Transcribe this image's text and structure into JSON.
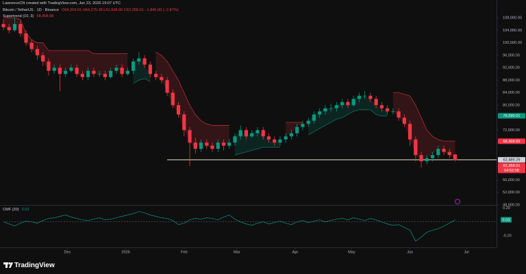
{
  "chart_data": {
    "type": "candlestick",
    "watermark": "LawrenceCN created with TradingView.com, Jun 23, 2026 19:07 UTC",
    "symbol": "Bitcoin / TetherUS · 1D · Binance",
    "ohlc_text": "O64,203.01 H64,275.38 L61,938.00 C62,358.01 −1,845.00 (−2.87%)",
    "brand": "TradingView",
    "up_color": "#089981",
    "down_color": "#f23645",
    "x": [
      0,
      3,
      6,
      9,
      12,
      15,
      18,
      21,
      24,
      27,
      30,
      33,
      36,
      39,
      42,
      45,
      48,
      51,
      54,
      57,
      60,
      63,
      66,
      69,
      72,
      75,
      78,
      81,
      84,
      87,
      90,
      93,
      96,
      99,
      102,
      105,
      108,
      111,
      114,
      117,
      120,
      123,
      126,
      129,
      132,
      135,
      138,
      141,
      144,
      147,
      150,
      153,
      156,
      159,
      162,
      165,
      168,
      171,
      174,
      177,
      180,
      183,
      186,
      189,
      192,
      195,
      198,
      201,
      204,
      207,
      210,
      213,
      216,
      219,
      222,
      225,
      228,
      231,
      234,
      237,
      240
    ],
    "open": [
      106000,
      105000,
      104000,
      106000,
      103000,
      100000,
      98000,
      96000,
      94000,
      91000,
      92000,
      90000,
      91000,
      92000,
      90000,
      89000,
      91000,
      90000,
      90000,
      89000,
      91000,
      92000,
      90000,
      91000,
      94000,
      95000,
      93000,
      90000,
      89000,
      88000,
      84000,
      80000,
      77000,
      72000,
      68000,
      66000,
      68000,
      67000,
      66000,
      68000,
      67000,
      68000,
      70000,
      72000,
      70000,
      71000,
      72000,
      70000,
      69000,
      68000,
      69000,
      70000,
      71000,
      73000,
      74000,
      75000,
      77000,
      78000,
      79000,
      79000,
      80000,
      81000,
      80000,
      82000,
      83000,
      83000,
      82000,
      80000,
      79000,
      78000,
      78000,
      76000,
      74000,
      69000,
      64000,
      62000,
      63000,
      64000,
      66000,
      65000,
      64203.01
    ],
    "high": [
      107500,
      106000,
      108000,
      107000,
      104000,
      101000,
      99000,
      97000,
      95000,
      93000,
      93000,
      92000,
      93000,
      93000,
      91000,
      92000,
      92000,
      91000,
      91000,
      92000,
      93000,
      93000,
      92000,
      95000,
      97000,
      96000,
      94000,
      91000,
      90000,
      89000,
      85000,
      81000,
      78000,
      73000,
      69500,
      69000,
      69000,
      68000,
      69000,
      69000,
      69000,
      71000,
      73500,
      73000,
      72000,
      73000,
      73000,
      71000,
      70000,
      70000,
      71000,
      72000,
      74000,
      75000,
      76000,
      78000,
      79000,
      80000,
      80500,
      81000,
      82000,
      82000,
      83000,
      84000,
      84500,
      84000,
      83000,
      81000,
      80000,
      79000,
      79000,
      77000,
      75000,
      70000,
      65000,
      64000,
      65000,
      67000,
      67000,
      66000,
      64275.38
    ],
    "low": [
      104000,
      103000,
      103500,
      102000,
      99000,
      97000,
      94500,
      92500,
      89500,
      90000,
      84500,
      89000,
      90500,
      89000,
      88000,
      88000,
      89000,
      89000,
      88000,
      88500,
      90000,
      89000,
      89500,
      90000,
      93000,
      92000,
      89000,
      88000,
      87000,
      83000,
      79000,
      76000,
      70000,
      60500,
      64500,
      65000,
      66000,
      65000,
      65000,
      65500,
      66000,
      67000,
      69000,
      69000,
      69500,
      70000,
      69000,
      68000,
      67000,
      67000,
      68000,
      69000,
      70000,
      72000,
      73000,
      74000,
      76000,
      77000,
      78000,
      78000,
      79000,
      79000,
      79500,
      81000,
      82000,
      81000,
      79000,
      78000,
      77000,
      77000,
      75000,
      73000,
      67000,
      62000,
      60000,
      61000,
      62000,
      63000,
      64000,
      63000,
      61938
    ],
    "close": [
      105000,
      104000,
      106000,
      103000,
      100000,
      98000,
      96000,
      94000,
      91000,
      92000,
      90000,
      91000,
      92000,
      90000,
      89000,
      91000,
      90000,
      90000,
      89000,
      91000,
      92000,
      90000,
      91000,
      94000,
      95000,
      93000,
      90000,
      89000,
      88000,
      84000,
      80000,
      77000,
      72000,
      68000,
      66000,
      68000,
      67000,
      66000,
      68000,
      67000,
      68000,
      70000,
      72000,
      70000,
      71000,
      72000,
      70000,
      69000,
      68000,
      69000,
      70000,
      71000,
      73000,
      74000,
      75000,
      77000,
      78000,
      79000,
      79000,
      80000,
      81000,
      80000,
      82000,
      83000,
      83000,
      82000,
      80000,
      79000,
      78000,
      78000,
      76000,
      74000,
      69000,
      64000,
      62000,
      63000,
      64000,
      66000,
      65000,
      64000,
      62358.01
    ],
    "xlim": [
      0,
      262
    ],
    "xticks": [
      {
        "value": 34,
        "label": "Dec"
      },
      {
        "value": 65,
        "label": "2026"
      },
      {
        "value": 96,
        "label": "Feb"
      },
      {
        "value": 124,
        "label": "Mar"
      },
      {
        "value": 155,
        "label": "Apr"
      },
      {
        "value": 185,
        "label": "May"
      },
      {
        "value": 216,
        "label": "Jun"
      },
      {
        "value": 246,
        "label": "Jul"
      }
    ],
    "ylim": [
      48000,
      113700
    ],
    "yticks": [
      {
        "value": 108000,
        "label": "108,000.00"
      },
      {
        "value": 104000,
        "label": "104,000.00"
      },
      {
        "value": 100000,
        "label": "100,000.00"
      },
      {
        "value": 96000,
        "label": "96,000.00"
      },
      {
        "value": 92000,
        "label": "92,000.00"
      },
      {
        "value": 88000,
        "label": "88,000.00"
      },
      {
        "value": 84000,
        "label": "84,000.00"
      },
      {
        "value": 80000,
        "label": "80,000.00"
      },
      {
        "value": 72000,
        "label": "72,000.00"
      },
      {
        "value": 56000,
        "label": "56,000.00"
      },
      {
        "value": 52000,
        "label": "52,000.00"
      },
      {
        "value": 48000,
        "label": "48,000.00"
      }
    ],
    "price_labels": [
      {
        "value": 76590.01,
        "label": "76,590.01",
        "color": "#089981"
      },
      {
        "value": 68458.68,
        "label": "68,458.68",
        "color": "#f23645"
      },
      {
        "value": 62489.29,
        "label": "62,489.29",
        "color": "#d1d4dc"
      },
      {
        "value": 62358.01,
        "label": "62,358.01",
        "color": "#f23645",
        "sub": "04:52:08"
      }
    ],
    "horizontal_line": {
      "value": 62489.29,
      "start": 87,
      "color": "#efe6c8"
    },
    "supertrend": {
      "name": "Supertrend (10, 3)",
      "value_label": "68,458.68",
      "up_color": "#089981",
      "down_color": "#f23645",
      "upper": [
        108000,
        108000,
        108000,
        107500,
        103000,
        101000,
        100000,
        100000,
        97500,
        97500,
        97500,
        97500,
        97500,
        97500,
        97500,
        97500,
        96500,
        96500,
        96500,
        96500,
        96500,
        96500,
        96500,
        null,
        null,
        null,
        null,
        97000,
        96000,
        94000,
        91000,
        88000,
        84000,
        80000,
        77000,
        75000,
        74000,
        73500,
        73500,
        73500,
        73500,
        null,
        null,
        null,
        null,
        null,
        null,
        null,
        null,
        null,
        74500,
        74500,
        74500,
        74500,
        null,
        null,
        null,
        null,
        null,
        null,
        null,
        null,
        null,
        null,
        null,
        null,
        null,
        null,
        null,
        84000,
        84000,
        83500,
        83000,
        80000,
        76000,
        72000,
        70000,
        69000,
        68500,
        68500,
        68458.68
      ],
      "lower": [
        null,
        null,
        null,
        null,
        null,
        null,
        null,
        null,
        null,
        null,
        null,
        null,
        null,
        null,
        null,
        null,
        null,
        null,
        null,
        null,
        null,
        null,
        null,
        87000,
        88000,
        88500,
        87500,
        null,
        null,
        null,
        null,
        null,
        null,
        null,
        null,
        null,
        null,
        null,
        null,
        null,
        null,
        64000,
        64500,
        65000,
        65500,
        66000,
        66500,
        66500,
        66500,
        66500,
        null,
        null,
        null,
        null,
        70500,
        71500,
        72500,
        73500,
        74500,
        75500,
        76000,
        77000,
        78000,
        78500,
        78500,
        78500,
        77000,
        76500,
        76500,
        null,
        null,
        null,
        null,
        null,
        null,
        null,
        null,
        null,
        null,
        null,
        null
      ]
    },
    "cmf": {
      "name": "CMF (20)",
      "value_label": "0.03",
      "color": "#089981",
      "zero_line": 0,
      "ylim": [
        -0.35,
        0.245
      ],
      "yticks": [
        {
          "value": 0.2,
          "label": "0.20"
        },
        {
          "value": -0.2,
          "label": "-0.20"
        }
      ],
      "values": [
        0.0,
        -0.03,
        -0.06,
        -0.02,
        0.01,
        0.0,
        -0.02,
        0.02,
        0.05,
        0.06,
        0.08,
        0.1,
        0.07,
        0.05,
        0.03,
        0.02,
        0.04,
        0.06,
        0.03,
        0.04,
        0.06,
        0.08,
        0.1,
        0.12,
        0.15,
        0.13,
        0.1,
        0.08,
        0.06,
        0.05,
        0.02,
        -0.04,
        -0.02,
        0.03,
        0.05,
        0.04,
        0.06,
        0.05,
        0.03,
        0.07,
        0.1,
        0.04,
        0.0,
        -0.03,
        -0.05,
        -0.02,
        0.0,
        -0.03,
        -0.01,
        0.01,
        -0.02,
        -0.04,
        0.0,
        0.02,
        -0.01,
        0.01,
        0.03,
        0.0,
        0.02,
        0.04,
        0.05,
        0.03,
        0.06,
        0.04,
        0.02,
        0.05,
        0.03,
        0.0,
        -0.03,
        -0.05,
        -0.04,
        -0.08,
        -0.12,
        -0.28,
        -0.22,
        -0.15,
        -0.12,
        -0.1,
        -0.06,
        -0.02,
        0.03
      ]
    }
  }
}
